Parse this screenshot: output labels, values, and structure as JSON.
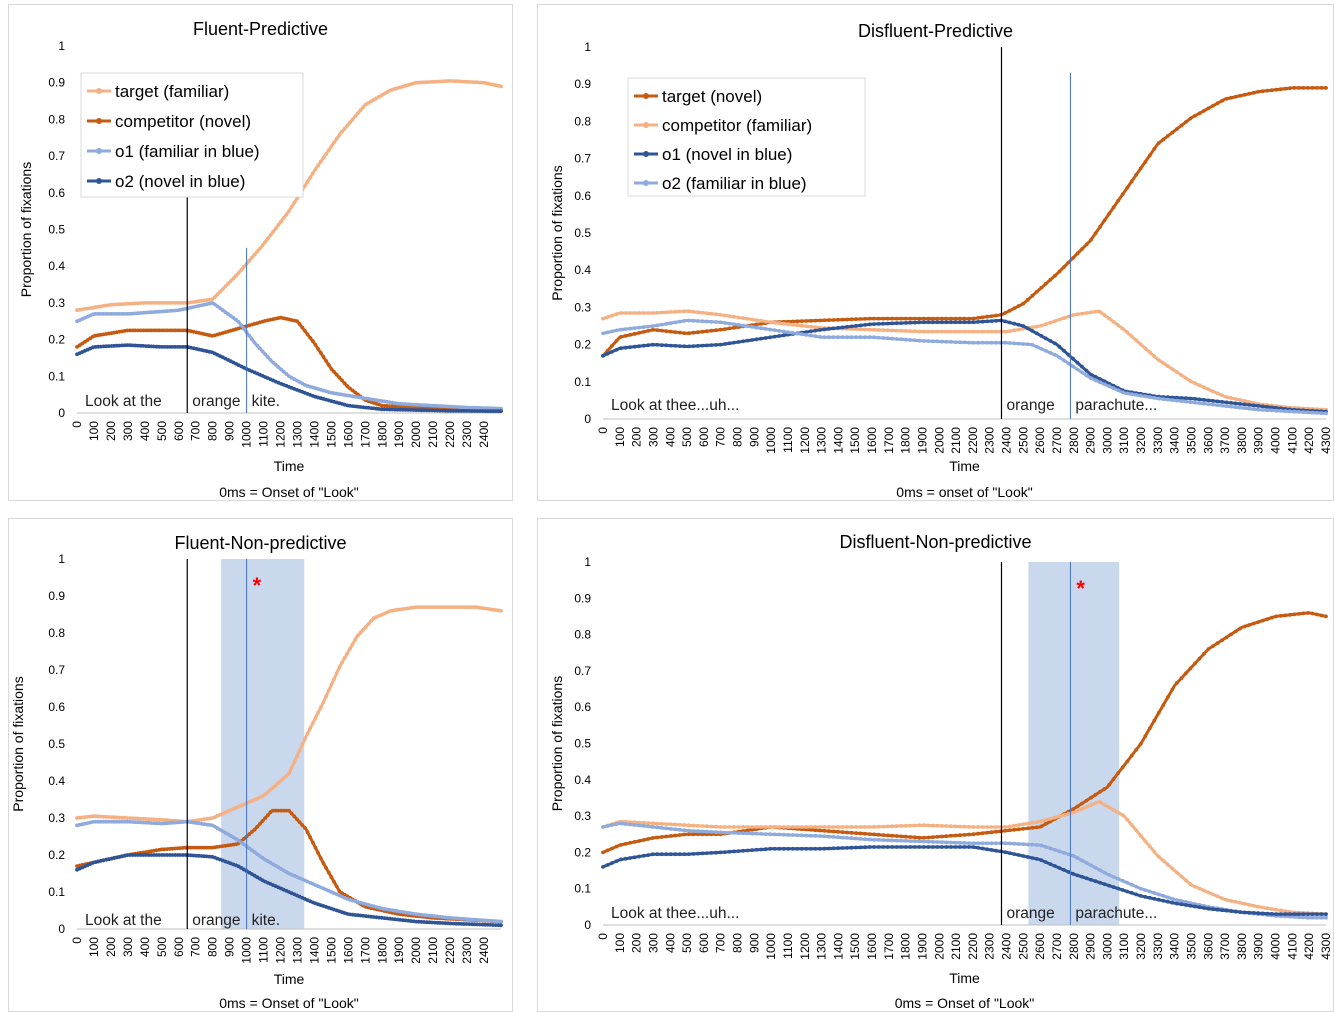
{
  "colors": {
    "light_orange": "#f4b183",
    "dark_orange": "#c55a11",
    "light_blue": "#8faadc",
    "dark_blue": "#2f5597",
    "shade": "#b4c7e7",
    "star": "#ff0000"
  },
  "chart_data": [
    {
      "type": "line",
      "title": "Fluent-Predictive",
      "xlabel": "Time",
      "ylabel": "Proportion of fixations",
      "caption": "0ms = Onset of \"Look\"",
      "xlim": [
        0,
        2500
      ],
      "x_ticks": [
        0,
        100,
        200,
        300,
        400,
        500,
        600,
        700,
        800,
        900,
        1000,
        1100,
        1200,
        1300,
        1400,
        1500,
        1600,
        1700,
        1800,
        1900,
        2000,
        2100,
        2200,
        2300,
        2400
      ],
      "ylim": [
        0,
        1
      ],
      "y_ticks": [
        0,
        0.1,
        0.2,
        0.3,
        0.4,
        0.5,
        0.6,
        0.7,
        0.8,
        0.9,
        1
      ],
      "legend_position": "top-left",
      "annotations": {
        "phrase": "Look at the",
        "word": "orange",
        "end": "kite."
      },
      "markers": {
        "black_line_x": 650,
        "blue_line_x": 1000,
        "shade": null,
        "star": false
      },
      "series": [
        {
          "name": "target (familiar)",
          "color": "#f4b183",
          "x": [
            0,
            200,
            400,
            650,
            800,
            950,
            1100,
            1250,
            1400,
            1550,
            1700,
            1850,
            2000,
            2200,
            2400,
            2500
          ],
          "y": [
            0.28,
            0.295,
            0.3,
            0.3,
            0.31,
            0.38,
            0.46,
            0.55,
            0.66,
            0.76,
            0.84,
            0.88,
            0.9,
            0.905,
            0.9,
            0.89
          ]
        },
        {
          "name": "competitor (novel)",
          "color": "#c55a11",
          "x": [
            0,
            100,
            300,
            650,
            800,
            950,
            1100,
            1200,
            1300,
            1400,
            1500,
            1600,
            1700,
            1800,
            2000,
            2200,
            2500
          ],
          "y": [
            0.18,
            0.21,
            0.225,
            0.225,
            0.21,
            0.23,
            0.25,
            0.26,
            0.25,
            0.19,
            0.12,
            0.07,
            0.035,
            0.02,
            0.015,
            0.012,
            0.01
          ]
        },
        {
          "name": "o1 (familiar in blue)",
          "color": "#8faadc",
          "x": [
            0,
            100,
            300,
            600,
            800,
            950,
            1050,
            1150,
            1250,
            1350,
            1500,
            1700,
            1900,
            2100,
            2300,
            2500
          ],
          "y": [
            0.25,
            0.27,
            0.27,
            0.28,
            0.3,
            0.25,
            0.19,
            0.14,
            0.1,
            0.075,
            0.055,
            0.04,
            0.025,
            0.02,
            0.015,
            0.012
          ]
        },
        {
          "name": "o2 (novel in blue)",
          "color": "#2f5597",
          "x": [
            0,
            100,
            300,
            500,
            650,
            800,
            1000,
            1200,
            1400,
            1600,
            1800,
            2000,
            2200,
            2500
          ],
          "y": [
            0.16,
            0.18,
            0.185,
            0.18,
            0.18,
            0.165,
            0.12,
            0.08,
            0.045,
            0.02,
            0.01,
            0.008,
            0.006,
            0.005
          ]
        }
      ]
    },
    {
      "type": "line",
      "title": "Disfluent-Predictive",
      "xlabel": "Time",
      "ylabel": "Proportion of fixations",
      "caption": "0ms = onset of \"Look\"",
      "xlim": [
        0,
        4300
      ],
      "x_ticks": [
        0,
        100,
        200,
        300,
        400,
        500,
        600,
        700,
        800,
        900,
        1000,
        1100,
        1200,
        1300,
        1400,
        1500,
        1600,
        1700,
        1800,
        1900,
        2000,
        2100,
        2200,
        2300,
        2400,
        2500,
        2600,
        2700,
        2800,
        2900,
        3000,
        3100,
        3200,
        3300,
        3400,
        3500,
        3600,
        3700,
        3800,
        3900,
        4000,
        4100,
        4200,
        4300
      ],
      "ylim": [
        0,
        1
      ],
      "y_ticks": [
        0,
        0.1,
        0.2,
        0.3,
        0.4,
        0.5,
        0.6,
        0.7,
        0.8,
        0.9,
        1
      ],
      "legend_position": "top-left",
      "annotations": {
        "phrase": "Look at thee...uh...",
        "word": "orange",
        "end": "parachute..."
      },
      "markers": {
        "black_line_x": 2370,
        "blue_line_x": 2780,
        "shade": null,
        "star": false
      },
      "series": [
        {
          "name": "target (novel)",
          "color": "#c55a11",
          "x": [
            0,
            100,
            300,
            500,
            700,
            1000,
            1300,
            1600,
            1900,
            2200,
            2370,
            2500,
            2700,
            2900,
            3100,
            3300,
            3500,
            3700,
            3900,
            4100,
            4300
          ],
          "y": [
            0.17,
            0.22,
            0.24,
            0.23,
            0.24,
            0.26,
            0.265,
            0.27,
            0.27,
            0.27,
            0.28,
            0.31,
            0.39,
            0.48,
            0.61,
            0.74,
            0.81,
            0.86,
            0.88,
            0.89,
            0.89
          ]
        },
        {
          "name": "competitor (familiar)",
          "color": "#f4b183",
          "x": [
            0,
            100,
            300,
            500,
            700,
            1000,
            1300,
            1600,
            1900,
            2200,
            2400,
            2600,
            2800,
            2950,
            3100,
            3300,
            3500,
            3700,
            3900,
            4100,
            4300
          ],
          "y": [
            0.27,
            0.285,
            0.285,
            0.29,
            0.28,
            0.26,
            0.245,
            0.24,
            0.235,
            0.235,
            0.235,
            0.25,
            0.28,
            0.29,
            0.24,
            0.16,
            0.1,
            0.06,
            0.04,
            0.03,
            0.025
          ]
        },
        {
          "name": "o1 (novel in blue)",
          "color": "#2f5597",
          "x": [
            0,
            100,
            300,
            500,
            700,
            1000,
            1300,
            1600,
            1900,
            2200,
            2370,
            2500,
            2700,
            2900,
            3100,
            3300,
            3500,
            3700,
            3900,
            4100,
            4300
          ],
          "y": [
            0.17,
            0.19,
            0.2,
            0.195,
            0.2,
            0.22,
            0.24,
            0.255,
            0.26,
            0.26,
            0.265,
            0.25,
            0.2,
            0.12,
            0.075,
            0.06,
            0.055,
            0.045,
            0.035,
            0.025,
            0.02
          ]
        },
        {
          "name": "o2 (familiar in blue)",
          "color": "#8faadc",
          "x": [
            0,
            100,
            300,
            500,
            700,
            1000,
            1300,
            1600,
            1900,
            2200,
            2400,
            2550,
            2700,
            2900,
            3100,
            3300,
            3500,
            3700,
            3900,
            4100,
            4300
          ],
          "y": [
            0.23,
            0.24,
            0.25,
            0.265,
            0.26,
            0.24,
            0.22,
            0.22,
            0.21,
            0.205,
            0.205,
            0.2,
            0.17,
            0.11,
            0.07,
            0.055,
            0.045,
            0.035,
            0.025,
            0.02,
            0.015
          ]
        }
      ]
    },
    {
      "type": "line",
      "title": "Fluent-Non-predictive",
      "xlabel": "Time",
      "ylabel": "Proportion of fixations",
      "caption": "0ms = Onset of \"Look\"",
      "xlim": [
        0,
        2500
      ],
      "x_ticks": [
        0,
        100,
        200,
        300,
        400,
        500,
        600,
        700,
        800,
        900,
        1000,
        1100,
        1200,
        1300,
        1400,
        1500,
        1600,
        1700,
        1800,
        1900,
        2000,
        2100,
        2200,
        2300,
        2400
      ],
      "ylim": [
        0,
        1
      ],
      "y_ticks": [
        0,
        0.1,
        0.2,
        0.3,
        0.4,
        0.5,
        0.6,
        0.7,
        0.8,
        0.9,
        1
      ],
      "legend_position": "none",
      "annotations": {
        "phrase": "Look at the",
        "word": "orange",
        "end": "kite."
      },
      "markers": {
        "black_line_x": 650,
        "blue_line_x": 1000,
        "shade": [
          850,
          1340
        ],
        "star": true
      },
      "series": [
        {
          "name": "",
          "color": "#f4b183",
          "x": [
            0,
            100,
            300,
            500,
            650,
            800,
            950,
            1100,
            1250,
            1350,
            1450,
            1550,
            1650,
            1750,
            1850,
            2000,
            2200,
            2350,
            2500
          ],
          "y": [
            0.3,
            0.305,
            0.3,
            0.295,
            0.29,
            0.3,
            0.33,
            0.36,
            0.42,
            0.52,
            0.61,
            0.71,
            0.79,
            0.84,
            0.86,
            0.87,
            0.87,
            0.87,
            0.86
          ]
        },
        {
          "name": "",
          "color": "#c55a11",
          "x": [
            0,
            100,
            300,
            500,
            650,
            800,
            950,
            1050,
            1150,
            1250,
            1350,
            1450,
            1550,
            1700,
            1900,
            2100,
            2300,
            2500
          ],
          "y": [
            0.17,
            0.18,
            0.2,
            0.215,
            0.22,
            0.22,
            0.23,
            0.27,
            0.32,
            0.32,
            0.27,
            0.18,
            0.1,
            0.06,
            0.04,
            0.03,
            0.025,
            0.02
          ]
        },
        {
          "name": "",
          "color": "#8faadc",
          "x": [
            0,
            100,
            300,
            500,
            650,
            800,
            950,
            1100,
            1250,
            1400,
            1600,
            1800,
            2000,
            2200,
            2500
          ],
          "y": [
            0.28,
            0.29,
            0.29,
            0.285,
            0.29,
            0.28,
            0.24,
            0.19,
            0.15,
            0.12,
            0.08,
            0.055,
            0.04,
            0.03,
            0.02
          ]
        },
        {
          "name": "",
          "color": "#2f5597",
          "x": [
            0,
            100,
            300,
            500,
            650,
            800,
            950,
            1100,
            1250,
            1400,
            1600,
            1800,
            2000,
            2200,
            2500
          ],
          "y": [
            0.16,
            0.18,
            0.2,
            0.2,
            0.2,
            0.195,
            0.17,
            0.13,
            0.1,
            0.07,
            0.04,
            0.03,
            0.02,
            0.015,
            0.01
          ]
        }
      ]
    },
    {
      "type": "line",
      "title": "Disfluent-Non-predictive",
      "xlabel": "Time",
      "ylabel": "Proportion of fixations",
      "caption": "0ms = Onset of \"Look\"",
      "xlim": [
        0,
        4300
      ],
      "x_ticks": [
        0,
        100,
        200,
        300,
        400,
        500,
        600,
        700,
        800,
        900,
        1000,
        1100,
        1200,
        1300,
        1400,
        1500,
        1600,
        1700,
        1800,
        1900,
        2000,
        2100,
        2200,
        2300,
        2400,
        2500,
        2600,
        2700,
        2800,
        2900,
        3000,
        3100,
        3200,
        3300,
        3400,
        3500,
        3600,
        3700,
        3800,
        3900,
        4000,
        4100,
        4200,
        4300
      ],
      "ylim": [
        0,
        1
      ],
      "y_ticks": [
        0,
        0.1,
        0.2,
        0.3,
        0.4,
        0.5,
        0.6,
        0.7,
        0.8,
        0.9,
        1
      ],
      "legend_position": "none",
      "annotations": {
        "phrase": "Look at thee...uh...",
        "word": "orange",
        "end": "parachute..."
      },
      "markers": {
        "black_line_x": 2370,
        "blue_line_x": 2780,
        "shade": [
          2530,
          3070
        ],
        "star": true
      },
      "series": [
        {
          "name": "",
          "color": "#c55a11",
          "x": [
            0,
            100,
            300,
            500,
            700,
            1000,
            1300,
            1600,
            1900,
            2200,
            2400,
            2600,
            2800,
            3000,
            3200,
            3400,
            3600,
            3800,
            4000,
            4200,
            4300
          ],
          "y": [
            0.2,
            0.22,
            0.24,
            0.25,
            0.25,
            0.27,
            0.26,
            0.25,
            0.24,
            0.25,
            0.26,
            0.27,
            0.32,
            0.38,
            0.5,
            0.66,
            0.76,
            0.82,
            0.85,
            0.86,
            0.85
          ]
        },
        {
          "name": "",
          "color": "#f4b183",
          "x": [
            0,
            100,
            300,
            500,
            700,
            1000,
            1300,
            1600,
            1900,
            2200,
            2400,
            2600,
            2800,
            2950,
            3100,
            3300,
            3500,
            3700,
            3900,
            4100,
            4300
          ],
          "y": [
            0.27,
            0.285,
            0.28,
            0.275,
            0.27,
            0.27,
            0.27,
            0.27,
            0.275,
            0.27,
            0.27,
            0.285,
            0.31,
            0.34,
            0.3,
            0.19,
            0.11,
            0.07,
            0.05,
            0.035,
            0.03
          ]
        },
        {
          "name": "",
          "color": "#8faadc",
          "x": [
            0,
            100,
            300,
            500,
            700,
            1000,
            1300,
            1600,
            1900,
            2200,
            2400,
            2600,
            2800,
            3000,
            3200,
            3400,
            3600,
            3800,
            4000,
            4200,
            4300
          ],
          "y": [
            0.27,
            0.28,
            0.27,
            0.26,
            0.255,
            0.25,
            0.245,
            0.235,
            0.23,
            0.225,
            0.225,
            0.22,
            0.19,
            0.14,
            0.1,
            0.07,
            0.05,
            0.035,
            0.025,
            0.02,
            0.02
          ]
        },
        {
          "name": "",
          "color": "#2f5597",
          "x": [
            0,
            100,
            300,
            500,
            700,
            1000,
            1300,
            1600,
            1900,
            2200,
            2400,
            2600,
            2800,
            3000,
            3200,
            3400,
            3600,
            3800,
            4000,
            4200,
            4300
          ],
          "y": [
            0.16,
            0.18,
            0.195,
            0.195,
            0.2,
            0.21,
            0.21,
            0.215,
            0.215,
            0.215,
            0.2,
            0.18,
            0.14,
            0.11,
            0.08,
            0.06,
            0.045,
            0.035,
            0.03,
            0.03,
            0.03
          ]
        }
      ]
    }
  ]
}
